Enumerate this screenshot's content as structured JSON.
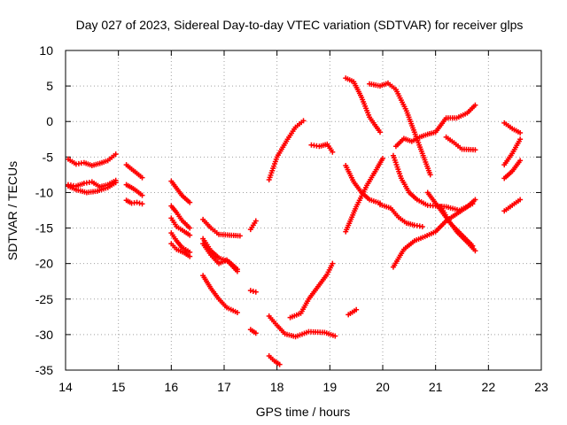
{
  "chart_data": {
    "type": "scatter",
    "title": "Day 027 of 2023, Sidereal Day-to-day VTEC variation (SDTVAR) for receiver glps",
    "xlabel": "GPS time / hours",
    "ylabel": "SDTVAR / TECUs",
    "xlim": [
      14,
      23
    ],
    "ylim": [
      -35,
      10
    ],
    "xticks": [
      "14",
      "15",
      "16",
      "17",
      "18",
      "19",
      "20",
      "21",
      "22",
      "23"
    ],
    "yticks": [
      "10",
      "5",
      "0",
      "-5",
      "-10",
      "-15",
      "-20",
      "-25",
      "-30",
      "-35"
    ],
    "grid": true,
    "marker": "plus",
    "color": "#ff0000",
    "series": [
      {
        "x": [
          14.05,
          14.2,
          14.35,
          14.5,
          14.65,
          14.8,
          14.95
        ],
        "y": [
          -5.3,
          -6.0,
          -5.8,
          -6.2,
          -5.9,
          -5.5,
          -4.6
        ]
      },
      {
        "x": [
          14.05,
          14.2,
          14.35,
          14.5,
          14.65,
          14.8,
          14.95
        ],
        "y": [
          -8.9,
          -9.1,
          -8.7,
          -8.5,
          -9.2,
          -8.9,
          -8.3
        ]
      },
      {
        "x": [
          14.05,
          14.2,
          14.4,
          14.6,
          14.8,
          14.95
        ],
        "y": [
          -9.1,
          -9.6,
          -10.0,
          -9.8,
          -9.3,
          -8.6
        ]
      },
      {
        "x": [
          15.15,
          15.25,
          15.35,
          15.45
        ],
        "y": [
          -6.1,
          -6.7,
          -7.3,
          -7.9
        ]
      },
      {
        "x": [
          15.15,
          15.25,
          15.35,
          15.45
        ],
        "y": [
          -8.9,
          -9.3,
          -9.8,
          -10.4
        ]
      },
      {
        "x": [
          15.15,
          15.25,
          15.35,
          15.45
        ],
        "y": [
          -11.1,
          -11.5,
          -11.4,
          -11.6
        ]
      },
      {
        "x": [
          16.0,
          16.1,
          16.2,
          16.35
        ],
        "y": [
          -8.4,
          -9.4,
          -10.4,
          -11.4
        ]
      },
      {
        "x": [
          16.0,
          16.1,
          16.2,
          16.35
        ],
        "y": [
          -11.9,
          -12.8,
          -13.9,
          -15.0
        ]
      },
      {
        "x": [
          16.0,
          16.1,
          16.25,
          16.35
        ],
        "y": [
          -13.6,
          -14.8,
          -15.5,
          -16.0
        ]
      },
      {
        "x": [
          16.0,
          16.1,
          16.2,
          16.35
        ],
        "y": [
          -15.7,
          -16.8,
          -17.7,
          -18.4
        ]
      },
      {
        "x": [
          16.0,
          16.1,
          16.25,
          16.35
        ],
        "y": [
          -17.2,
          -18.0,
          -18.5,
          -19.0
        ]
      },
      {
        "x": [
          16.6,
          16.75,
          16.9,
          17.1,
          17.3
        ],
        "y": [
          -13.8,
          -15.0,
          -15.9,
          -16.0,
          -16.1
        ]
      },
      {
        "x": [
          16.6,
          16.75,
          16.9,
          17.1,
          17.25
        ],
        "y": [
          -16.5,
          -18.2,
          -19.2,
          -19.8,
          -20.8
        ]
      },
      {
        "x": [
          16.6,
          16.75,
          16.9,
          17.05,
          17.25
        ],
        "y": [
          -17.2,
          -18.8,
          -20.0,
          -19.5,
          -21.1
        ]
      },
      {
        "x": [
          16.6,
          16.75,
          16.9,
          17.05,
          17.25
        ],
        "y": [
          -21.7,
          -23.5,
          -25.0,
          -26.2,
          -26.9
        ]
      },
      {
        "x": [
          17.5,
          17.6
        ],
        "y": [
          -15.2,
          -14.0
        ]
      },
      {
        "x": [
          17.5,
          17.6
        ],
        "y": [
          -23.8,
          -24.0
        ]
      },
      {
        "x": [
          17.5,
          17.6
        ],
        "y": [
          -29.3,
          -29.8
        ]
      },
      {
        "x": [
          17.85,
          18.0,
          18.2,
          18.35,
          18.5
        ],
        "y": [
          -8.2,
          -5.0,
          -2.5,
          -0.8,
          0.1
        ]
      },
      {
        "x": [
          17.85,
          18.0,
          18.15,
          18.35,
          18.6,
          18.9,
          19.1
        ],
        "y": [
          -27.4,
          -28.7,
          -29.9,
          -30.3,
          -29.6,
          -29.7,
          -30.2
        ]
      },
      {
        "x": [
          17.85,
          17.95,
          18.05
        ],
        "y": [
          -33.0,
          -33.7,
          -34.2
        ]
      },
      {
        "x": [
          18.65,
          18.8,
          18.95,
          19.05
        ],
        "y": [
          -3.3,
          -3.5,
          -3.2,
          -4.3
        ]
      },
      {
        "x": [
          18.25,
          18.45,
          18.6,
          18.8,
          18.95,
          19.05
        ],
        "y": [
          -27.6,
          -27.0,
          -25.0,
          -23.0,
          -21.5,
          -20.0
        ]
      },
      {
        "x": [
          19.35,
          19.5
        ],
        "y": [
          -27.2,
          -26.5
        ]
      },
      {
        "x": [
          19.3,
          19.45,
          19.6,
          19.75,
          19.95
        ],
        "y": [
          6.1,
          5.6,
          3.4,
          0.6,
          -1.5
        ]
      },
      {
        "x": [
          19.3,
          19.45,
          19.6,
          19.75,
          19.95
        ],
        "y": [
          -6.2,
          -8.5,
          -10.0,
          -11.0,
          -11.5
        ]
      },
      {
        "x": [
          19.3,
          19.5,
          19.7,
          19.9,
          20.0
        ],
        "y": [
          -15.5,
          -12.0,
          -9.0,
          -6.5,
          -5.2
        ]
      },
      {
        "x": [
          19.75,
          19.95,
          20.1,
          20.25,
          20.45,
          20.6,
          20.75,
          20.9
        ],
        "y": [
          5.3,
          5.0,
          5.4,
          4.5,
          1.5,
          -1.5,
          -4.5,
          -7.5
        ]
      },
      {
        "x": [
          19.95,
          20.15,
          20.3,
          20.45,
          20.6,
          20.75
        ],
        "y": [
          -11.7,
          -12.2,
          -13.5,
          -14.3,
          -14.6,
          -14.8
        ]
      },
      {
        "x": [
          20.25,
          20.4,
          20.55,
          20.7,
          20.85,
          21.0,
          21.2,
          21.4,
          21.6,
          21.75
        ],
        "y": [
          -3.5,
          -2.4,
          -2.8,
          -2.2,
          -1.8,
          -1.5,
          0.5,
          0.5,
          1.2,
          2.3
        ]
      },
      {
        "x": [
          20.2,
          20.35,
          20.5,
          20.65,
          20.85,
          21.0,
          21.2,
          21.45,
          21.7
        ],
        "y": [
          -4.8,
          -8.0,
          -10.0,
          -11.0,
          -11.8,
          -11.9,
          -12.0,
          -12.5,
          -11.6
        ]
      },
      {
        "x": [
          20.2,
          20.4,
          20.6,
          20.8,
          21.0,
          21.2,
          21.4,
          21.6,
          21.75
        ],
        "y": [
          -20.5,
          -18.0,
          -16.8,
          -16.2,
          -15.5,
          -14.0,
          -13.0,
          -12.0,
          -11.0
        ]
      },
      {
        "x": [
          20.85,
          21.0,
          21.15,
          21.3,
          21.5,
          21.7
        ],
        "y": [
          -10.0,
          -11.5,
          -13.0,
          -14.5,
          -16.0,
          -17.5
        ]
      },
      {
        "x": [
          21.1,
          21.25,
          21.4,
          21.6,
          21.75
        ],
        "y": [
          -12.0,
          -14.0,
          -15.5,
          -17.0,
          -18.2
        ]
      },
      {
        "x": [
          21.2,
          21.35,
          21.5,
          21.75
        ],
        "y": [
          -2.2,
          -3.0,
          -3.9,
          -4.0
        ]
      },
      {
        "x": [
          22.3,
          22.45,
          22.6
        ],
        "y": [
          -0.2,
          -1.0,
          -1.6
        ]
      },
      {
        "x": [
          22.3,
          22.45,
          22.6
        ],
        "y": [
          -6.1,
          -4.5,
          -2.5
        ]
      },
      {
        "x": [
          22.3,
          22.45,
          22.6
        ],
        "y": [
          -8.0,
          -7.0,
          -5.5
        ]
      },
      {
        "x": [
          22.3,
          22.45,
          22.6
        ],
        "y": [
          -12.6,
          -11.8,
          -11.0
        ]
      }
    ]
  }
}
